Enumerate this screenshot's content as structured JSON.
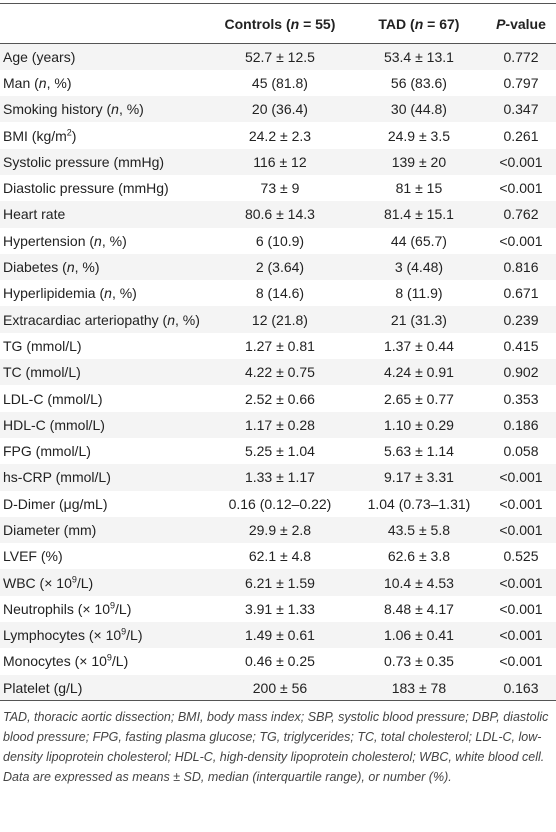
{
  "table": {
    "header": [
      [
        {
          "text": "Controls ("
        },
        {
          "text": "n",
          "italic": true
        },
        {
          "text": " = 55)"
        }
      ],
      [
        {
          "text": "TAD ("
        },
        {
          "text": "n",
          "italic": true
        },
        {
          "text": " = 67)"
        }
      ],
      [
        {
          "text": "P",
          "italic": true
        },
        {
          "text": "-value"
        }
      ]
    ],
    "rows": [
      [
        "Age (years)",
        "52.7 ± 12.5",
        "53.4 ± 13.1",
        "0.772"
      ],
      [
        [
          {
            "text": "Man ("
          },
          {
            "text": "n",
            "italic": true
          },
          {
            "text": ", %)"
          }
        ],
        "45 (81.8)",
        "56 (83.6)",
        "0.797"
      ],
      [
        [
          {
            "text": "Smoking history ("
          },
          {
            "text": "n",
            "italic": true
          },
          {
            "text": ", %)"
          }
        ],
        "20 (36.4)",
        "30 (44.8)",
        "0.347"
      ],
      [
        [
          {
            "text": "BMI (kg/m"
          },
          {
            "text": "2",
            "sup": true
          },
          {
            "text": ")"
          }
        ],
        "24.2 ± 2.3",
        "24.9 ± 3.5",
        "0.261"
      ],
      [
        "Systolic pressure (mmHg)",
        "116 ± 12",
        "139 ± 20",
        "<0.001"
      ],
      [
        "Diastolic pressure (mmHg)",
        "73 ± 9",
        "81 ± 15",
        "<0.001"
      ],
      [
        "Heart rate",
        "80.6 ± 14.3",
        "81.4 ± 15.1",
        "0.762"
      ],
      [
        [
          {
            "text": "Hypertension ("
          },
          {
            "text": "n",
            "italic": true
          },
          {
            "text": ", %)"
          }
        ],
        "6 (10.9)",
        "44 (65.7)",
        "<0.001"
      ],
      [
        [
          {
            "text": "Diabetes ("
          },
          {
            "text": "n",
            "italic": true
          },
          {
            "text": ", %)"
          }
        ],
        "2 (3.64)",
        "3 (4.48)",
        "0.816"
      ],
      [
        [
          {
            "text": "Hyperlipidemia ("
          },
          {
            "text": "n",
            "italic": true
          },
          {
            "text": ", %)"
          }
        ],
        "8 (14.6)",
        "8 (11.9)",
        "0.671"
      ],
      [
        [
          {
            "text": "Extracardiac arteriopathy ("
          },
          {
            "text": "n",
            "italic": true
          },
          {
            "text": ", %)"
          }
        ],
        "12 (21.8)",
        "21 (31.3)",
        "0.239"
      ],
      [
        "TG (mmol/L)",
        "1.27 ± 0.81",
        "1.37 ± 0.44",
        "0.415"
      ],
      [
        "TC (mmol/L)",
        "4.22 ± 0.75",
        "4.24 ± 0.91",
        "0.902"
      ],
      [
        "LDL-C (mmol/L)",
        "2.52 ± 0.66",
        "2.65 ± 0.77",
        "0.353"
      ],
      [
        "HDL-C (mmol/L)",
        "1.17 ± 0.28",
        "1.10 ± 0.29",
        "0.186"
      ],
      [
        "FPG (mmol/L)",
        "5.25 ± 1.04",
        "5.63 ± 1.14",
        "0.058"
      ],
      [
        "hs-CRP (mmol/L)",
        "1.33 ± 1.17",
        "9.17 ± 3.31",
        "<0.001"
      ],
      [
        "D-Dimer (μg/mL)",
        "0.16 (0.12–0.22)",
        "1.04 (0.73–1.31)",
        "<0.001"
      ],
      [
        "Diameter (mm)",
        "29.9 ± 2.8",
        "43.5 ± 5.8",
        "<0.001"
      ],
      [
        "LVEF (%)",
        "62.1 ± 4.8",
        "62.6 ± 3.8",
        "0.525"
      ],
      [
        [
          {
            "text": "WBC (× 10"
          },
          {
            "text": "9",
            "sup": true
          },
          {
            "text": "/L)"
          }
        ],
        "6.21 ± 1.59",
        "10.4 ± 4.53",
        "<0.001"
      ],
      [
        [
          {
            "text": "Neutrophils (× 10"
          },
          {
            "text": "9",
            "sup": true
          },
          {
            "text": "/L)"
          }
        ],
        "3.91 ± 1.33",
        "8.48 ± 4.17",
        "<0.001"
      ],
      [
        [
          {
            "text": "Lymphocytes (× 10"
          },
          {
            "text": "9",
            "sup": true
          },
          {
            "text": "/L)"
          }
        ],
        "1.49 ± 0.61",
        "1.06 ± 0.41",
        "<0.001"
      ],
      [
        [
          {
            "text": "Monocytes (× 10"
          },
          {
            "text": "9",
            "sup": true
          },
          {
            "text": "/L)"
          }
        ],
        "0.46 ± 0.25",
        "0.73 ± 0.35",
        "<0.001"
      ],
      [
        "Platelet (g/L)",
        "200 ± 56",
        "183 ± 78",
        "0.163"
      ]
    ],
    "footnote": "TAD, thoracic aortic dissection; BMI, body mass index; SBP, systolic blood pressure; DBP, diastolic blood pressure; FPG, fasting plasma glucose; TG, triglycerides; TC, total cholesterol; LDL-C, low-density lipoprotein cholesterol; HDL-C, high-density lipoprotein cholesterol; WBC, white blood cell. Data are expressed as means ± SD, median (interquartile range), or number (%)."
  }
}
